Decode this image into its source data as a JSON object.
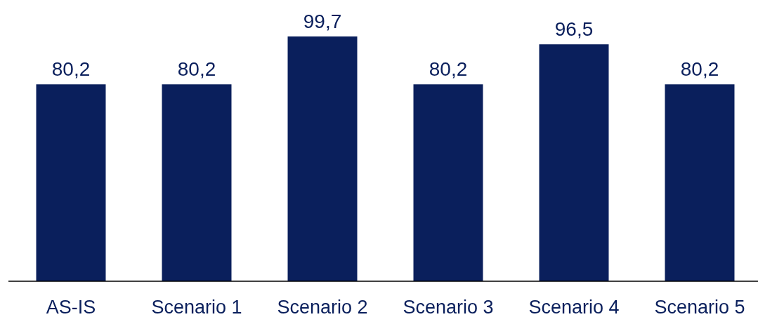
{
  "chart_data": {
    "type": "bar",
    "categories": [
      "AS-IS",
      "Scenario 1",
      "Scenario 2",
      "Scenario 3",
      "Scenario 4",
      "Scenario 5"
    ],
    "values": [
      80.2,
      80.2,
      99.7,
      80.2,
      96.5,
      80.2
    ],
    "value_labels": [
      "80,2",
      "80,2",
      "99,7",
      "80,2",
      "96,5",
      "80,2"
    ],
    "color": "#0a1f5c"
  }
}
